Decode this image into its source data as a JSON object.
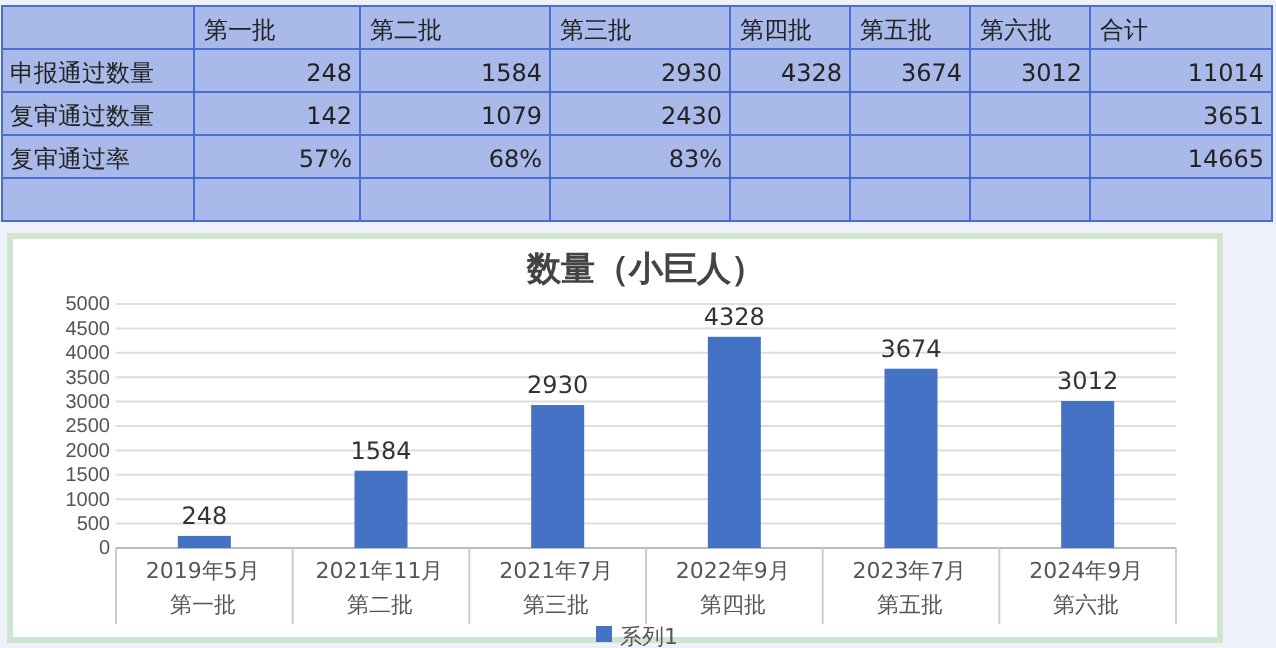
{
  "chart_data": [
    {
      "type": "other",
      "categories": [
        "第一批",
        "第二批",
        "第三批",
        "第四批",
        "第五批",
        "第六批",
        "合计"
      ],
      "y_categories": [
        "申报通过数量",
        "复审通过数量",
        "复审通过率",
        null
      ],
      "cell_labels": [
        [
          "248",
          "1584",
          "2930",
          "4328",
          "3674",
          "3012",
          "11014"
        ],
        [
          "142",
          "1079",
          "2430",
          null,
          null,
          null,
          "3651"
        ],
        [
          "57%",
          "68%",
          "83%",
          null,
          null,
          null,
          "14665"
        ],
        [
          null,
          null,
          null,
          null,
          null,
          null,
          null
        ]
      ]
    },
    {
      "type": "bar",
      "title": "数量（小巨人）",
      "categories": [
        "2019年5月第一批",
        "2021年11月第二批",
        "2021年7月第三批",
        "2022年9月第四批",
        "2023年7月第五批",
        "2024年9月第六批"
      ],
      "series": [
        {
          "name": "系列1",
          "color": "#4472c4",
          "values": [
            248,
            1584,
            2930,
            4328,
            3674,
            3012
          ]
        }
      ],
      "ylim": [
        0,
        5000
      ],
      "yticks": [
        0,
        500,
        1000,
        1500,
        2000,
        2500,
        3000,
        3500,
        4000,
        4500,
        5000
      ],
      "grid": "y",
      "data_labels": true,
      "legend": "bottom"
    }
  ]
}
